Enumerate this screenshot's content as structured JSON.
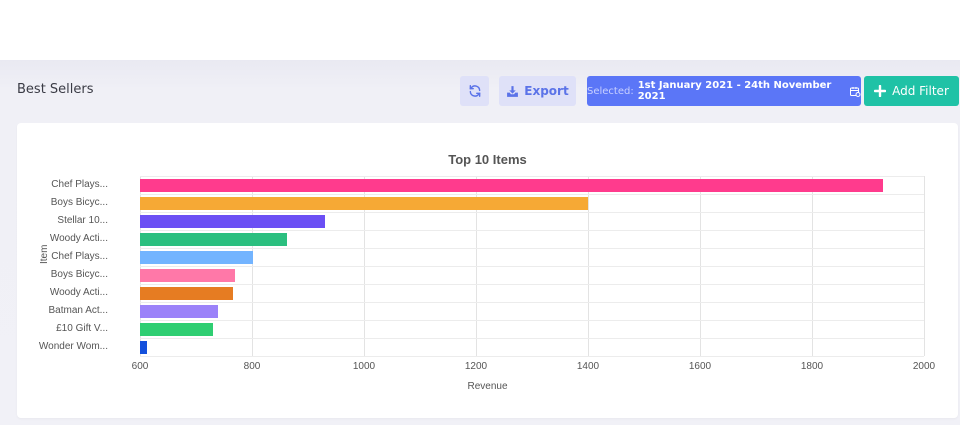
{
  "header": {
    "page_title": "Best Sellers",
    "refresh_icon": "refresh-icon",
    "export_label": "Export",
    "export_icon": "download-tray-icon",
    "date_prefix": "Selected:",
    "date_range": "1st January 2021 - 24th November 2021",
    "calendar_icon": "calendar-icon",
    "add_filter_label": "Add Filter",
    "add_filter_icon": "plus-icon"
  },
  "colors": {
    "primary": "#5b76f7",
    "accent": "#1fc2a6",
    "light_button_bg": "#dfe1f8"
  },
  "chart_data": {
    "type": "bar",
    "orientation": "horizontal",
    "title": "Top 10 Items",
    "xlabel": "Revenue",
    "ylabel": "Item",
    "xlim": [
      600,
      2000
    ],
    "xticks": [
      "600",
      "800",
      "1000",
      "1200",
      "1400",
      "1600",
      "1800",
      "2000"
    ],
    "grid": true,
    "legend": false,
    "categories": [
      "Chef Plays...",
      "Boys Bicyc...",
      "Stellar 10...",
      "Woody Acti...",
      "Chef Plays...",
      "Boys Bicyc...",
      "Woody Acti...",
      "Batman Act...",
      "£10 Gift V...",
      "Wonder Wom..."
    ],
    "values": [
      1927,
      1400,
      930,
      862,
      802,
      770,
      766,
      739,
      730,
      612
    ],
    "bar_colors": [
      "#ff3b8d",
      "#f6a935",
      "#6b4ff4",
      "#2bbf7f",
      "#73b4ff",
      "#ff78a8",
      "#e67c22",
      "#9b82f9",
      "#2fce72",
      "#1450dc"
    ]
  }
}
